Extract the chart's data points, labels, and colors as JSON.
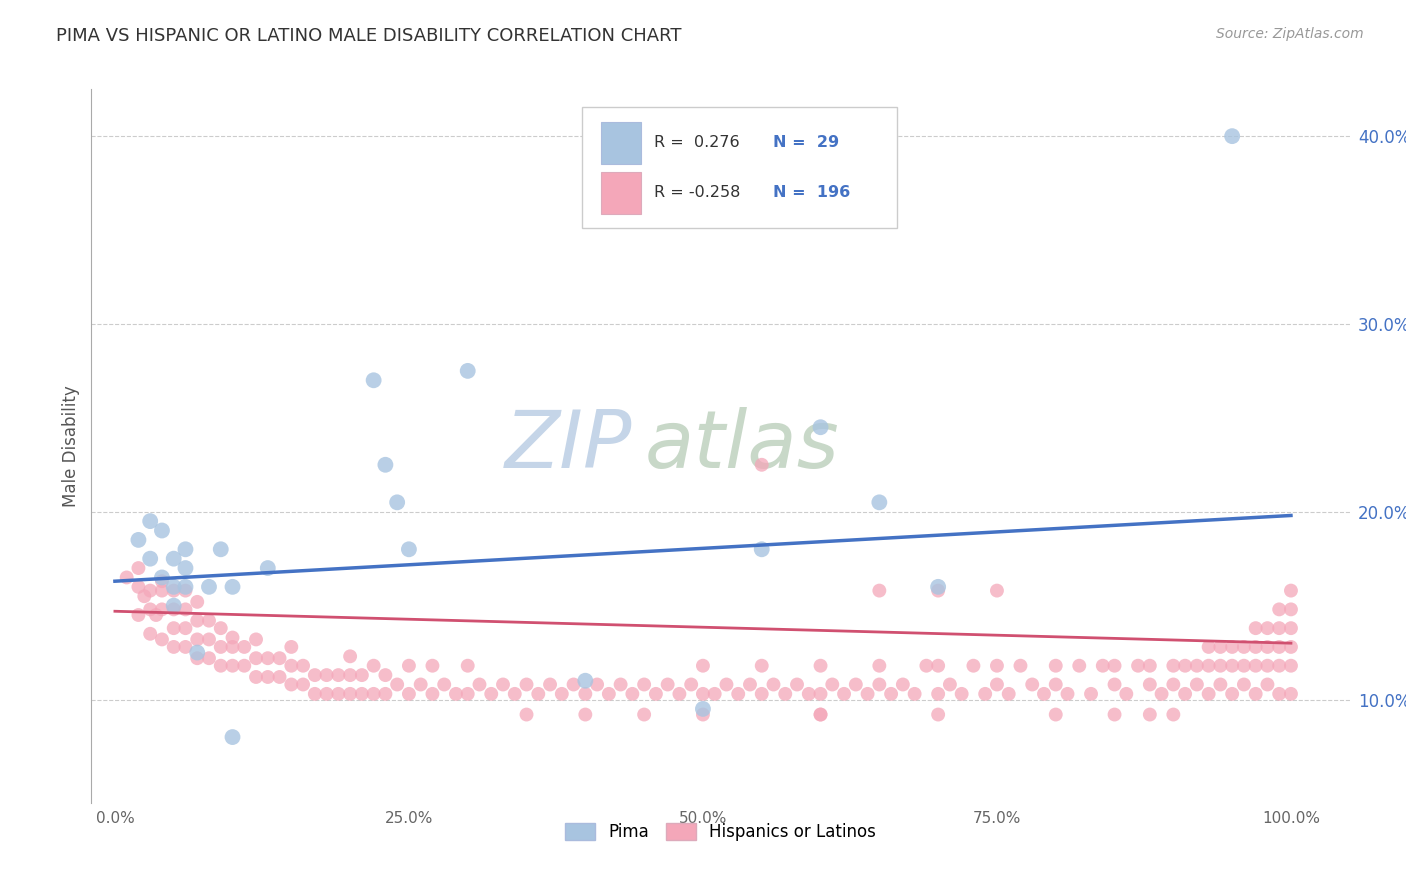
{
  "title": "PIMA VS HISPANIC OR LATINO MALE DISABILITY CORRELATION CHART",
  "source": "Source: ZipAtlas.com",
  "ylabel": "Male Disability",
  "xlim": [
    -0.02,
    1.05
  ],
  "ylim": [
    0.045,
    0.425
  ],
  "ytick_labels": [
    "10.0%",
    "20.0%",
    "30.0%",
    "40.0%"
  ],
  "ytick_vals": [
    0.1,
    0.2,
    0.3,
    0.4
  ],
  "xtick_labels": [
    "0.0%",
    "",
    "",
    "",
    "",
    "25.0%",
    "",
    "",
    "",
    "",
    "50.0%",
    "",
    "",
    "",
    "",
    "75.0%",
    "",
    "",
    "",
    "",
    "100.0%"
  ],
  "xtick_vals": [
    0.0,
    0.05,
    0.1,
    0.15,
    0.2,
    0.25,
    0.3,
    0.35,
    0.4,
    0.45,
    0.5,
    0.55,
    0.6,
    0.65,
    0.7,
    0.75,
    0.8,
    0.85,
    0.9,
    0.95,
    1.0
  ],
  "legend_bottom": [
    "Pima",
    "Hispanics or Latinos"
  ],
  "pima_R": 0.276,
  "pima_N": 29,
  "hisp_R": -0.258,
  "hisp_N": 196,
  "pima_color": "#a8c4e0",
  "hisp_color": "#f4a7b9",
  "pima_line_color": "#4472c4",
  "hisp_line_color": "#d05070",
  "pima_line": [
    0.0,
    0.163,
    1.0,
    0.198
  ],
  "hisp_line": [
    0.0,
    0.147,
    1.0,
    0.13
  ],
  "pima_scatter": [
    [
      0.02,
      0.185
    ],
    [
      0.03,
      0.195
    ],
    [
      0.03,
      0.175
    ],
    [
      0.04,
      0.19
    ],
    [
      0.04,
      0.165
    ],
    [
      0.05,
      0.15
    ],
    [
      0.05,
      0.16
    ],
    [
      0.05,
      0.175
    ],
    [
      0.06,
      0.16
    ],
    [
      0.06,
      0.17
    ],
    [
      0.06,
      0.18
    ],
    [
      0.07,
      0.125
    ],
    [
      0.08,
      0.16
    ],
    [
      0.09,
      0.18
    ],
    [
      0.1,
      0.16
    ],
    [
      0.1,
      0.08
    ],
    [
      0.13,
      0.17
    ],
    [
      0.22,
      0.27
    ],
    [
      0.23,
      0.225
    ],
    [
      0.24,
      0.205
    ],
    [
      0.25,
      0.18
    ],
    [
      0.3,
      0.275
    ],
    [
      0.4,
      0.11
    ],
    [
      0.5,
      0.095
    ],
    [
      0.55,
      0.18
    ],
    [
      0.6,
      0.245
    ],
    [
      0.65,
      0.205
    ],
    [
      0.7,
      0.16
    ],
    [
      0.95,
      0.4
    ]
  ],
  "hisp_scatter": [
    [
      0.01,
      0.165
    ],
    [
      0.02,
      0.145
    ],
    [
      0.02,
      0.16
    ],
    [
      0.02,
      0.17
    ],
    [
      0.025,
      0.155
    ],
    [
      0.03,
      0.135
    ],
    [
      0.03,
      0.148
    ],
    [
      0.03,
      0.158
    ],
    [
      0.035,
      0.145
    ],
    [
      0.04,
      0.132
    ],
    [
      0.04,
      0.148
    ],
    [
      0.04,
      0.158
    ],
    [
      0.04,
      0.163
    ],
    [
      0.05,
      0.128
    ],
    [
      0.05,
      0.138
    ],
    [
      0.05,
      0.148
    ],
    [
      0.05,
      0.158
    ],
    [
      0.06,
      0.128
    ],
    [
      0.06,
      0.138
    ],
    [
      0.06,
      0.148
    ],
    [
      0.06,
      0.158
    ],
    [
      0.07,
      0.122
    ],
    [
      0.07,
      0.132
    ],
    [
      0.07,
      0.142
    ],
    [
      0.07,
      0.152
    ],
    [
      0.08,
      0.122
    ],
    [
      0.08,
      0.132
    ],
    [
      0.08,
      0.142
    ],
    [
      0.09,
      0.118
    ],
    [
      0.09,
      0.128
    ],
    [
      0.09,
      0.138
    ],
    [
      0.1,
      0.118
    ],
    [
      0.1,
      0.128
    ],
    [
      0.1,
      0.133
    ],
    [
      0.11,
      0.118
    ],
    [
      0.11,
      0.128
    ],
    [
      0.12,
      0.112
    ],
    [
      0.12,
      0.122
    ],
    [
      0.12,
      0.132
    ],
    [
      0.13,
      0.112
    ],
    [
      0.13,
      0.122
    ],
    [
      0.14,
      0.112
    ],
    [
      0.14,
      0.122
    ],
    [
      0.15,
      0.108
    ],
    [
      0.15,
      0.118
    ],
    [
      0.15,
      0.128
    ],
    [
      0.16,
      0.108
    ],
    [
      0.16,
      0.118
    ],
    [
      0.17,
      0.103
    ],
    [
      0.17,
      0.113
    ],
    [
      0.18,
      0.103
    ],
    [
      0.18,
      0.113
    ],
    [
      0.19,
      0.103
    ],
    [
      0.19,
      0.113
    ],
    [
      0.2,
      0.103
    ],
    [
      0.2,
      0.113
    ],
    [
      0.2,
      0.123
    ],
    [
      0.21,
      0.103
    ],
    [
      0.21,
      0.113
    ],
    [
      0.22,
      0.103
    ],
    [
      0.22,
      0.118
    ],
    [
      0.23,
      0.103
    ],
    [
      0.23,
      0.113
    ],
    [
      0.24,
      0.108
    ],
    [
      0.25,
      0.103
    ],
    [
      0.25,
      0.118
    ],
    [
      0.26,
      0.108
    ],
    [
      0.27,
      0.103
    ],
    [
      0.27,
      0.118
    ],
    [
      0.28,
      0.108
    ],
    [
      0.29,
      0.103
    ],
    [
      0.3,
      0.103
    ],
    [
      0.3,
      0.118
    ],
    [
      0.31,
      0.108
    ],
    [
      0.32,
      0.103
    ],
    [
      0.33,
      0.108
    ],
    [
      0.34,
      0.103
    ],
    [
      0.35,
      0.108
    ],
    [
      0.36,
      0.103
    ],
    [
      0.37,
      0.108
    ],
    [
      0.38,
      0.103
    ],
    [
      0.39,
      0.108
    ],
    [
      0.4,
      0.103
    ],
    [
      0.41,
      0.108
    ],
    [
      0.42,
      0.103
    ],
    [
      0.43,
      0.108
    ],
    [
      0.44,
      0.103
    ],
    [
      0.45,
      0.108
    ],
    [
      0.46,
      0.103
    ],
    [
      0.47,
      0.108
    ],
    [
      0.48,
      0.103
    ],
    [
      0.49,
      0.108
    ],
    [
      0.5,
      0.103
    ],
    [
      0.5,
      0.118
    ],
    [
      0.51,
      0.103
    ],
    [
      0.52,
      0.108
    ],
    [
      0.53,
      0.103
    ],
    [
      0.54,
      0.108
    ],
    [
      0.55,
      0.103
    ],
    [
      0.55,
      0.118
    ],
    [
      0.56,
      0.108
    ],
    [
      0.57,
      0.103
    ],
    [
      0.58,
      0.108
    ],
    [
      0.59,
      0.103
    ],
    [
      0.6,
      0.103
    ],
    [
      0.6,
      0.118
    ],
    [
      0.61,
      0.108
    ],
    [
      0.62,
      0.103
    ],
    [
      0.63,
      0.108
    ],
    [
      0.64,
      0.103
    ],
    [
      0.65,
      0.108
    ],
    [
      0.65,
      0.118
    ],
    [
      0.66,
      0.103
    ],
    [
      0.67,
      0.108
    ],
    [
      0.68,
      0.103
    ],
    [
      0.69,
      0.118
    ],
    [
      0.7,
      0.103
    ],
    [
      0.7,
      0.118
    ],
    [
      0.71,
      0.108
    ],
    [
      0.72,
      0.103
    ],
    [
      0.73,
      0.118
    ],
    [
      0.74,
      0.103
    ],
    [
      0.75,
      0.108
    ],
    [
      0.75,
      0.118
    ],
    [
      0.76,
      0.103
    ],
    [
      0.77,
      0.118
    ],
    [
      0.78,
      0.108
    ],
    [
      0.79,
      0.103
    ],
    [
      0.8,
      0.108
    ],
    [
      0.8,
      0.118
    ],
    [
      0.81,
      0.103
    ],
    [
      0.82,
      0.118
    ],
    [
      0.83,
      0.103
    ],
    [
      0.84,
      0.118
    ],
    [
      0.85,
      0.108
    ],
    [
      0.85,
      0.118
    ],
    [
      0.86,
      0.103
    ],
    [
      0.87,
      0.118
    ],
    [
      0.88,
      0.108
    ],
    [
      0.88,
      0.118
    ],
    [
      0.89,
      0.103
    ],
    [
      0.9,
      0.108
    ],
    [
      0.9,
      0.118
    ],
    [
      0.91,
      0.103
    ],
    [
      0.91,
      0.118
    ],
    [
      0.92,
      0.108
    ],
    [
      0.92,
      0.118
    ],
    [
      0.93,
      0.103
    ],
    [
      0.93,
      0.118
    ],
    [
      0.93,
      0.128
    ],
    [
      0.94,
      0.108
    ],
    [
      0.94,
      0.118
    ],
    [
      0.94,
      0.128
    ],
    [
      0.95,
      0.103
    ],
    [
      0.95,
      0.118
    ],
    [
      0.95,
      0.128
    ],
    [
      0.96,
      0.108
    ],
    [
      0.96,
      0.118
    ],
    [
      0.96,
      0.128
    ],
    [
      0.97,
      0.103
    ],
    [
      0.97,
      0.118
    ],
    [
      0.97,
      0.128
    ],
    [
      0.97,
      0.138
    ],
    [
      0.98,
      0.108
    ],
    [
      0.98,
      0.118
    ],
    [
      0.98,
      0.128
    ],
    [
      0.98,
      0.138
    ],
    [
      0.99,
      0.103
    ],
    [
      0.99,
      0.118
    ],
    [
      0.99,
      0.128
    ],
    [
      0.99,
      0.138
    ],
    [
      0.99,
      0.148
    ],
    [
      1.0,
      0.103
    ],
    [
      1.0,
      0.118
    ],
    [
      1.0,
      0.128
    ],
    [
      1.0,
      0.138
    ],
    [
      1.0,
      0.148
    ],
    [
      1.0,
      0.158
    ],
    [
      0.4,
      0.092
    ],
    [
      0.6,
      0.092
    ],
    [
      0.7,
      0.092
    ],
    [
      0.8,
      0.092
    ],
    [
      0.85,
      0.092
    ],
    [
      0.88,
      0.092
    ],
    [
      0.9,
      0.092
    ],
    [
      0.55,
      0.225
    ],
    [
      0.65,
      0.158
    ],
    [
      0.7,
      0.158
    ],
    [
      0.75,
      0.158
    ],
    [
      0.5,
      0.092
    ],
    [
      0.6,
      0.092
    ],
    [
      0.35,
      0.092
    ],
    [
      0.45,
      0.092
    ]
  ],
  "background_color": "#ffffff",
  "grid_color": "#cccccc",
  "title_color": "#333333",
  "source_color": "#999999",
  "yticklabel_color": "#4472c4",
  "xticklabel_color": "#666666",
  "ylabel_color": "#555555"
}
